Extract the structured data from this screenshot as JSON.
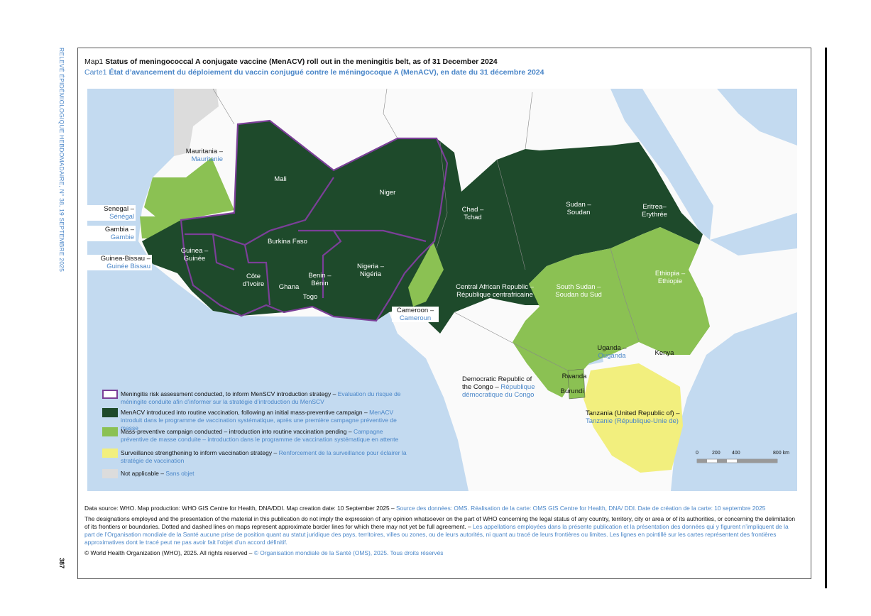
{
  "side_header": "RELEVÉ ÉPIDÉMIOLOGIQUE HEBDOMADAIRE, N° 38, 19 SEPTEMBRE 2025",
  "page_number": "387",
  "map": {
    "title_en": {
      "prefix": "Map1",
      "text": "Status of meningococcal A conjugate vaccine (MenACV) roll out in the meningitis belt, as of 31 December 2024"
    },
    "title_fr": {
      "prefix": "Carte1",
      "text": "État d’avancement du déploiement du vaccin conjugué contre le méningocoque A (MenACV), en date du 31 décembre 2024"
    },
    "labels": [
      {
        "en": "Mauritania –",
        "fr": "Mauritanie"
      },
      {
        "en": "Senegal –",
        "fr": "Sénégal"
      },
      {
        "en": "Gambia –",
        "fr": "Gambie"
      },
      {
        "en": "Guinea-Bissau –",
        "fr": "Guinée Bissau"
      },
      {
        "en": "Guinea –",
        "fr": "Guinée"
      },
      {
        "en": "Mali"
      },
      {
        "en": "Niger"
      },
      {
        "en": "Burkina Faso"
      },
      {
        "en": "Côte d’Ivoire"
      },
      {
        "en": "Ghana"
      },
      {
        "en": "Benin –",
        "fr": "Bénin"
      },
      {
        "en": "Togo"
      },
      {
        "en": "Nigeria –",
        "fr": "Nigéria"
      },
      {
        "en": "Chad –",
        "fr": "Tchad"
      },
      {
        "en": "Sudan –",
        "fr": "Soudan"
      },
      {
        "en": "Eritrea–",
        "fr": "Erythrée"
      },
      {
        "en": "Central African Republic –",
        "fr": "République centrafricaine"
      },
      {
        "en": "Cameroon –",
        "fr": "Cameroun"
      },
      {
        "en": "South Sudan –",
        "fr": "Soudan du Sud"
      },
      {
        "en": "Ethiopia –",
        "fr": "Ethiopie"
      },
      {
        "en": "Uganda –",
        "fr": "Ouganda"
      },
      {
        "en": "Kenya"
      },
      {
        "en": "Rwanda"
      },
      {
        "en": "Burundi"
      },
      {
        "en": "Democratic Republic of the Congo –",
        "fr": "République démocratique du Congo"
      },
      {
        "en": "Tanzania (United Republic of) –",
        "fr": "Tanzanie (République-Unie de)"
      }
    ],
    "legend": [
      {
        "color": "#7b3f98",
        "en": "Meningitis risk assessment conducted, to inform MenSCV introduction strategy –",
        "fr": "Evaluation du risque de méningite conduite afin d’informer sur la stratégie d’introduction du MenSCV"
      },
      {
        "color": "#1e4a2b",
        "en": "MenACV introduced into routine vaccination, following an initial mass-preventive campaign –",
        "fr": "MenACV introduit dans le programme de vaccination systématique, après une première campagne préventive de masse"
      },
      {
        "color": "#8bc153",
        "en": "Mass-preventive campaign conducted – introduction into routine vaccination pending –",
        "fr": "Campagne préventive de masse conduite – introduction dans le programme de vaccination systématique en attente"
      },
      {
        "color": "#f2ef7e",
        "en": "Surveillance strengthening to inform vaccination strategy –",
        "fr": "Renforcement de la surveillance pour éclairer la stratégie de vaccination"
      },
      {
        "color": "#dcdcdc",
        "en": "Not applicable –",
        "fr": "Sans objet"
      }
    ],
    "scale_labels": [
      "0",
      "200",
      "400",
      "800 km"
    ]
  },
  "footer": [
    {
      "en": "Data source: WHO. Map production: WHO GIS Centre for Health, DNA/DDI. Map creation date: 10 September 2025 –",
      "fr": "Source des données: OMS. Réalisation de la carte: OMS GIS Centre for Health, DNA/ DDI. Date de création de la carte: 10 septembre 2025"
    },
    {
      "en": "The designations employed and the presentation of the material in this publication do not imply the expression of any opinion whatsoever on the part of WHO concerning the legal status of any country, territory, city or area or of its authorities, or concerning the delimitation of its frontiers or boundaries. Dotted and dashed lines on maps represent approximate border lines for which there may not yet be full agreement. –",
      "fr": "Les appellations employées dans la présente publication et la présentation des données qui y figurent n’impliquent de la part de l’Organisation mondiale de la Santé aucune prise de position quant au statut juridique des pays, territoires, villes ou zones, ou de leurs autorités, ni quant au tracé de leurs frontières ou limites. Les lignes en pointillé sur les cartes représentent des frontières approximatives dont le tracé peut ne pas avoir fait l’objet d’un accord définitif."
    },
    {
      "en": "© World Health Organization (WHO), 2025. All rights reserved –",
      "fr": "© Organisation mondiale de la Santé (OMS), 2025. Tous droits réservés"
    }
  ]
}
